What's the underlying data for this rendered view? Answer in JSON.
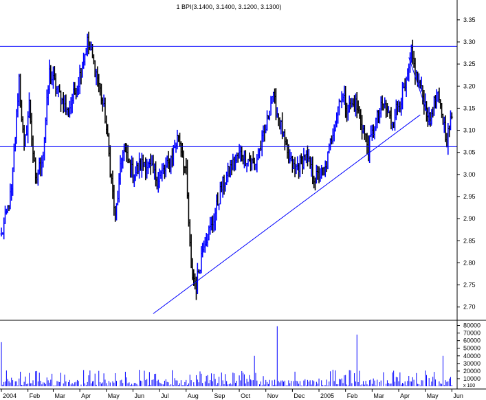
{
  "chart_data": {
    "type": "bar",
    "subtype": "ohlc",
    "title": "1 BPI(3.1400, 3.1400, 3.1200, 3.1300)",
    "colors": {
      "up": "#0000ff",
      "down": "#000000",
      "lines": "#0000ff",
      "grid": "#000000"
    },
    "price_axis": {
      "ylim": [
        2.67,
        3.37
      ],
      "ticks": [
        "3.35",
        "3.30",
        "3.25",
        "3.20",
        "3.15",
        "3.10",
        "3.05",
        "3.00",
        "2.95",
        "2.90",
        "2.85",
        "2.80",
        "2.75",
        "2.70"
      ],
      "side": "right"
    },
    "volume_axis": {
      "ylim": [
        0,
        85000
      ],
      "ticks": [
        "80000",
        "70000",
        "60000",
        "50000",
        "40000",
        "30000",
        "20000",
        "10000"
      ],
      "scale_label": "x 100"
    },
    "x_axis": {
      "labels": [
        "2004",
        "Feb",
        "Mar",
        "Apr",
        "May",
        "Jun",
        "Jul",
        "Aug",
        "Sep",
        "Oct",
        "Nov",
        "Dec",
        "2005",
        "Feb",
        "Mar",
        "Apr",
        "May",
        "Jun"
      ],
      "label_index": [
        0,
        21,
        41,
        62,
        83,
        104,
        125,
        146,
        167,
        188,
        209,
        230,
        251,
        272,
        293,
        314,
        335,
        356
      ]
    },
    "anchors": [
      [
        0,
        2.86
      ],
      [
        8,
        2.96
      ],
      [
        14,
        3.22
      ],
      [
        18,
        3.05
      ],
      [
        22,
        3.16
      ],
      [
        27,
        2.98
      ],
      [
        33,
        3.05
      ],
      [
        38,
        3.23
      ],
      [
        46,
        3.18
      ],
      [
        52,
        3.14
      ],
      [
        60,
        3.2
      ],
      [
        68,
        3.3
      ],
      [
        76,
        3.22
      ],
      [
        82,
        3.13
      ],
      [
        90,
        2.9
      ],
      [
        96,
        3.06
      ],
      [
        104,
        3.0
      ],
      [
        113,
        3.03
      ],
      [
        123,
        2.99
      ],
      [
        132,
        3.02
      ],
      [
        140,
        3.09
      ],
      [
        146,
        3.0
      ],
      [
        150,
        2.78
      ],
      [
        154,
        2.75
      ],
      [
        160,
        2.85
      ],
      [
        166,
        2.88
      ],
      [
        174,
        2.97
      ],
      [
        182,
        3.02
      ],
      [
        190,
        3.05
      ],
      [
        200,
        3.02
      ],
      [
        208,
        3.09
      ],
      [
        214,
        3.18
      ],
      [
        220,
        3.12
      ],
      [
        226,
        3.04
      ],
      [
        232,
        3.01
      ],
      [
        240,
        3.04
      ],
      [
        248,
        2.99
      ],
      [
        256,
        3.01
      ],
      [
        262,
        3.1
      ],
      [
        268,
        3.18
      ],
      [
        274,
        3.15
      ],
      [
        280,
        3.16
      ],
      [
        286,
        3.1
      ],
      [
        290,
        3.06
      ],
      [
        296,
        3.12
      ],
      [
        302,
        3.16
      ],
      [
        308,
        3.12
      ],
      [
        314,
        3.16
      ],
      [
        320,
        3.2
      ],
      [
        324,
        3.27
      ],
      [
        328,
        3.22
      ],
      [
        334,
        3.17
      ],
      [
        338,
        3.12
      ],
      [
        344,
        3.18
      ],
      [
        348,
        3.14
      ],
      [
        352,
        3.08
      ],
      [
        356,
        3.13
      ]
    ],
    "volume_spikes": [
      {
        "index": 218,
        "value": 79000
      },
      {
        "index": 281,
        "value": 68000
      },
      {
        "index": 349,
        "value": 40000
      },
      {
        "index": 0,
        "value": 58000
      },
      {
        "index": 28,
        "value": 20000
      },
      {
        "index": 200,
        "value": 40000
      }
    ],
    "horizontal_lines": [
      3.29,
      3.063
    ],
    "trend_lines": [
      {
        "from": [
          120,
          2.685
        ],
        "to": [
          331,
          3.135
        ]
      },
      {
        "from": [
          322,
          3.265
        ],
        "to": [
          340,
          3.11
        ]
      }
    ],
    "grid": false,
    "legend": "none"
  }
}
